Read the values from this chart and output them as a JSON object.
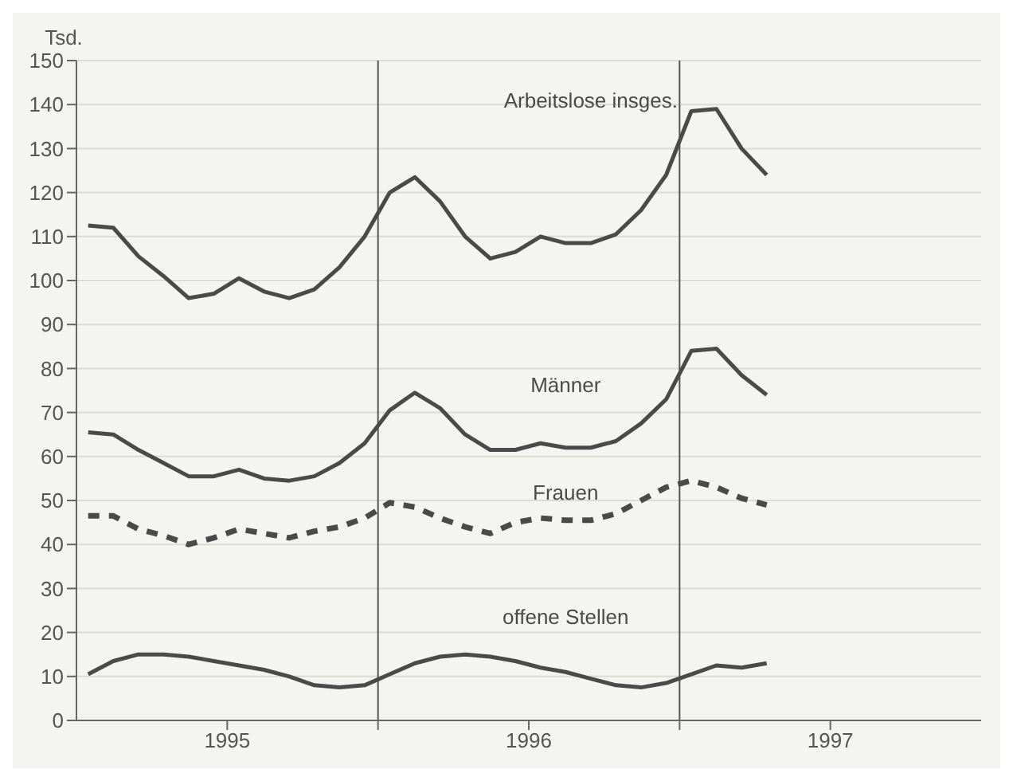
{
  "chart_data": {
    "type": "line",
    "ylabel": "Tsd.",
    "x": [
      "1995-01-15",
      "1995-02-15",
      "1995-03-15",
      "1995-04-15",
      "1995-05-15",
      "1995-06-15",
      "1995-07-15",
      "1995-08-15",
      "1995-09-15",
      "1995-10-15",
      "1995-11-15",
      "1995-12-15",
      "1996-01-15",
      "1996-02-15",
      "1996-03-15",
      "1996-04-15",
      "1996-05-15",
      "1996-06-15",
      "1996-07-15",
      "1996-08-15",
      "1996-09-15",
      "1996-10-15",
      "1996-11-15",
      "1996-12-15",
      "1997-01-15",
      "1997-02-15",
      "1997-03-15",
      "1997-04-15"
    ],
    "series": [
      {
        "name": "Arbeitslose insges.",
        "color": "#4a4a4a",
        "line_style": "solid",
        "values": [
          112.5,
          112,
          105.5,
          101,
          96,
          97,
          100.5,
          97.5,
          96,
          98,
          103,
          110,
          120,
          123.5,
          118,
          110,
          105,
          106.5,
          110,
          108.5,
          108.5,
          110.5,
          116,
          124,
          138.5,
          139,
          130,
          124
        ]
      },
      {
        "name": "Männer",
        "color": "#4a4a4a",
        "line_style": "solid",
        "values": [
          65.5,
          65,
          61.5,
          58.5,
          55.5,
          55.5,
          57,
          55,
          54.5,
          55.5,
          58.5,
          63,
          70.5,
          74.5,
          71,
          65,
          61.5,
          61.5,
          63,
          62,
          62,
          63.5,
          67.5,
          73,
          84,
          84.5,
          78.5,
          74
        ]
      },
      {
        "name": "Frauen",
        "color": "#4a4a4a",
        "line_style": "dashed",
        "values": [
          46.5,
          46.5,
          43.5,
          42,
          40,
          41.5,
          43.5,
          42.5,
          41.5,
          43,
          44,
          46,
          49.5,
          48.5,
          46,
          44,
          42.5,
          45,
          46,
          45.5,
          45.5,
          47,
          50,
          53,
          54.5,
          53,
          50.5,
          49
        ]
      },
      {
        "name": "offene Stellen",
        "color": "#4a4a4a",
        "line_style": "solid",
        "values": [
          10.5,
          13.5,
          15,
          15,
          14.5,
          13.5,
          12.5,
          11.5,
          10,
          8,
          7.5,
          8,
          10.5,
          13,
          14.5,
          15,
          14.5,
          13.5,
          12,
          11,
          9.5,
          8,
          7.5,
          8.5,
          10.5,
          12.5,
          12,
          13
        ]
      }
    ],
    "xlim": [
      "1995-01-01",
      "1998-01-01"
    ],
    "xticks": [
      {
        "value": "1995-07-01",
        "label": "1995"
      },
      {
        "value": "1996-01-01",
        "label": null
      },
      {
        "value": "1996-07-01",
        "label": "1996"
      },
      {
        "value": "1997-01-01",
        "label": null
      },
      {
        "value": "1997-07-01",
        "label": "1997"
      }
    ],
    "ylim": [
      0,
      150
    ],
    "yticks": [
      0,
      10,
      20,
      30,
      40,
      50,
      60,
      70,
      80,
      90,
      100,
      110,
      120,
      130,
      140,
      150
    ],
    "ref_lines": [
      {
        "axis": "x",
        "value": "1996-01-01",
        "label": null,
        "color": "#555555"
      },
      {
        "axis": "x",
        "value": "1997-01-01",
        "label": null,
        "color": "#555555"
      }
    ],
    "grid": "y",
    "legend": false,
    "marker": "none"
  }
}
